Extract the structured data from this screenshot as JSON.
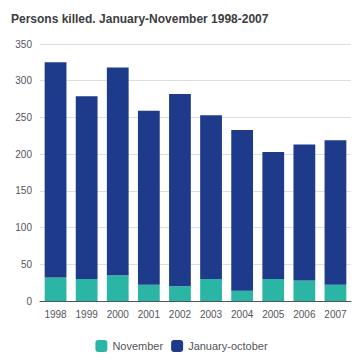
{
  "chart_data": {
    "type": "bar",
    "title": "Persons killed. January-November 1998-2007",
    "categories": [
      "1998",
      "1999",
      "2000",
      "2001",
      "2002",
      "2003",
      "2004",
      "2005",
      "2006",
      "2007"
    ],
    "series": [
      {
        "name": "November",
        "color": "#2ab5a5",
        "values": [
          32,
          30,
          35,
          22,
          20,
          30,
          14,
          30,
          28,
          22
        ]
      },
      {
        "name": "January-october",
        "color": "#1e3a8a",
        "values": [
          293,
          249,
          283,
          237,
          262,
          223,
          219,
          173,
          185,
          197
        ]
      }
    ],
    "stacked": true,
    "ylim": [
      0,
      350
    ],
    "yticks": [
      0,
      50,
      100,
      150,
      200,
      250,
      300,
      350
    ],
    "grid": true,
    "legend": "bottom"
  }
}
